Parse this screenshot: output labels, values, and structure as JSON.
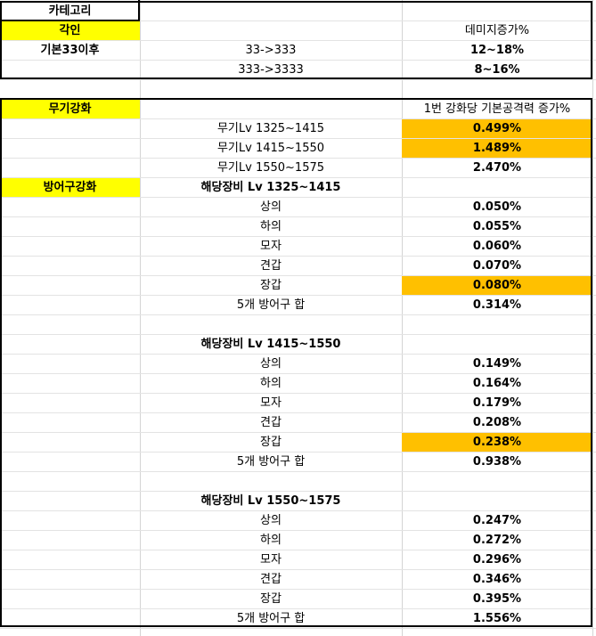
{
  "colors": {
    "yellow": "#ffff00",
    "orange": "#ffc000",
    "border": "#000000",
    "grid": "#d4d4d4"
  },
  "rows": [
    {
      "c1": "카테고리",
      "c2": "",
      "c3": "",
      "c1style": "bold"
    },
    {
      "c1": "각인",
      "c2": "",
      "c3": "데미지증가%",
      "c1style": "bold yellow",
      "c3style": ""
    },
    {
      "c1": "기본33이후",
      "c2": "33->333",
      "c3": "12~18%",
      "c1style": "bold",
      "c3style": "bold"
    },
    {
      "c1": "",
      "c2": "333->3333",
      "c3": "8~16%",
      "c3style": "bold"
    },
    {
      "c1": "",
      "c2": "",
      "c3": ""
    },
    {
      "c1": "무기강화",
      "c2": "",
      "c3": "1번 강화당 기본공격력 증가%",
      "c1style": "bold yellow"
    },
    {
      "c1": "",
      "c2": "무기Lv 1325~1415",
      "c3": "0.499%",
      "c3style": "bold orange"
    },
    {
      "c1": "",
      "c2": "무기Lv 1415~1550",
      "c3": "1.489%",
      "c3style": "bold orange"
    },
    {
      "c1": "",
      "c2": "무기Lv 1550~1575",
      "c3": "2.470%",
      "c3style": "bold"
    },
    {
      "c1": "방어구강화",
      "c2": "해당장비 Lv 1325~1415",
      "c3": "",
      "c1style": "bold yellow",
      "c2style": "bold"
    },
    {
      "c1": "",
      "c2": "상의",
      "c3": "0.050%",
      "c3style": "bold"
    },
    {
      "c1": "",
      "c2": "하의",
      "c3": "0.055%",
      "c3style": "bold"
    },
    {
      "c1": "",
      "c2": "모자",
      "c3": "0.060%",
      "c3style": "bold"
    },
    {
      "c1": "",
      "c2": "견갑",
      "c3": "0.070%",
      "c3style": "bold"
    },
    {
      "c1": "",
      "c2": "장갑",
      "c3": "0.080%",
      "c3style": "bold orange"
    },
    {
      "c1": "",
      "c2": "5개 방어구 합",
      "c3": "0.314%",
      "c3style": "bold"
    },
    {
      "c1": "",
      "c2": "",
      "c3": ""
    },
    {
      "c1": "",
      "c2": "해당장비 Lv 1415~1550",
      "c3": "",
      "c2style": "bold"
    },
    {
      "c1": "",
      "c2": "상의",
      "c3": "0.149%",
      "c3style": "bold"
    },
    {
      "c1": "",
      "c2": "하의",
      "c3": "0.164%",
      "c3style": "bold"
    },
    {
      "c1": "",
      "c2": "모자",
      "c3": "0.179%",
      "c3style": "bold"
    },
    {
      "c1": "",
      "c2": "견갑",
      "c3": "0.208%",
      "c3style": "bold"
    },
    {
      "c1": "",
      "c2": "장갑",
      "c3": "0.238%",
      "c3style": "bold orange"
    },
    {
      "c1": "",
      "c2": "5개 방어구 합",
      "c3": "0.938%",
      "c3style": "bold"
    },
    {
      "c1": "",
      "c2": "",
      "c3": ""
    },
    {
      "c1": "",
      "c2": "해당장비 Lv 1550~1575",
      "c3": "",
      "c2style": "bold"
    },
    {
      "c1": "",
      "c2": "상의",
      "c3": "0.247%",
      "c3style": "bold"
    },
    {
      "c1": "",
      "c2": "하의",
      "c3": "0.272%",
      "c3style": "bold"
    },
    {
      "c1": "",
      "c2": "모자",
      "c3": "0.296%",
      "c3style": "bold"
    },
    {
      "c1": "",
      "c2": "견갑",
      "c3": "0.346%",
      "c3style": "bold"
    },
    {
      "c1": "",
      "c2": "장갑",
      "c3": "0.395%",
      "c3style": "bold"
    },
    {
      "c1": "",
      "c2": "5개 방어구 합",
      "c3": "1.556%",
      "c3style": "bold"
    }
  ]
}
